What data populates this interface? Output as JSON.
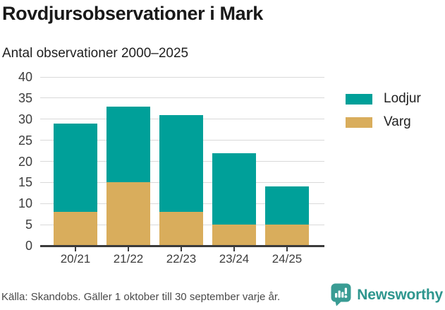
{
  "header": {
    "title": "Rovdjursobservationer i Mark",
    "subtitle": "Antal observationer 2000–2025"
  },
  "chart_data": {
    "type": "bar",
    "stacked": true,
    "title": "Rovdjursobservationer i Mark",
    "subtitle": "Antal observationer 2000–2025",
    "categories": [
      "20/21",
      "21/22",
      "22/23",
      "23/24",
      "24/25"
    ],
    "series": [
      {
        "name": "Varg",
        "color": "#d9ad5c",
        "values": [
          8,
          15,
          8,
          5,
          5
        ]
      },
      {
        "name": "Lodjur",
        "color": "#00a099",
        "values": [
          21,
          18,
          23,
          17,
          9
        ]
      }
    ],
    "stack_totals": [
      29,
      33,
      31,
      22,
      14
    ],
    "xlabel": "",
    "ylabel": "",
    "ylim": [
      0,
      40
    ],
    "ytick_step": 5,
    "grid": true,
    "legend_position": "right"
  },
  "legend": {
    "items": [
      {
        "label": "Lodjur",
        "color": "#00a099"
      },
      {
        "label": "Varg",
        "color": "#d9ad5c"
      }
    ]
  },
  "footer": {
    "source": "Källa: Skandobs. Gäller 1 oktober till 30 september varje år.",
    "brand": "Newsworthy"
  },
  "colors": {
    "lodjur": "#00a099",
    "varg": "#d9ad5c",
    "brand_teal": "#2e968e",
    "axis": "#3b3b3b",
    "gridline": "#d9d9d9"
  }
}
